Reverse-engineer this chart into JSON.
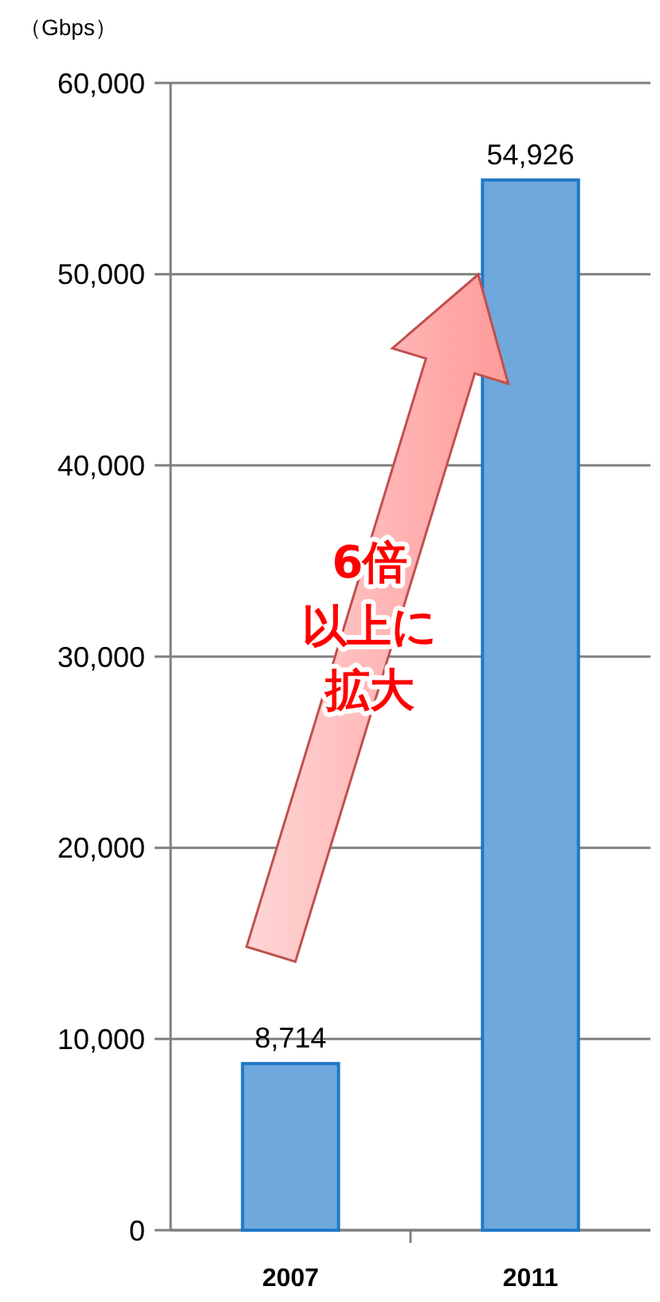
{
  "chart_data": {
    "type": "bar",
    "ylabel": "（Gbps）",
    "categories": [
      "2007",
      "2011"
    ],
    "values": [
      8714,
      54926
    ],
    "color": "#6fa8dc",
    "ylim": [
      0,
      60000
    ],
    "yticks": [
      {
        "value": 0,
        "label": "0"
      },
      {
        "value": 10000,
        "label": "10,000"
      },
      {
        "value": 20000,
        "label": "20,000"
      },
      {
        "value": 30000,
        "label": "30,000"
      },
      {
        "value": 40000,
        "label": "40,000"
      },
      {
        "value": 50000,
        "label": "50,000"
      },
      {
        "value": 60000,
        "label": "60,000"
      }
    ],
    "grid": "y",
    "value_labels": [
      "8,714",
      "54,926"
    ],
    "annotations": [
      "6倍",
      "以上に",
      "拡大"
    ]
  }
}
